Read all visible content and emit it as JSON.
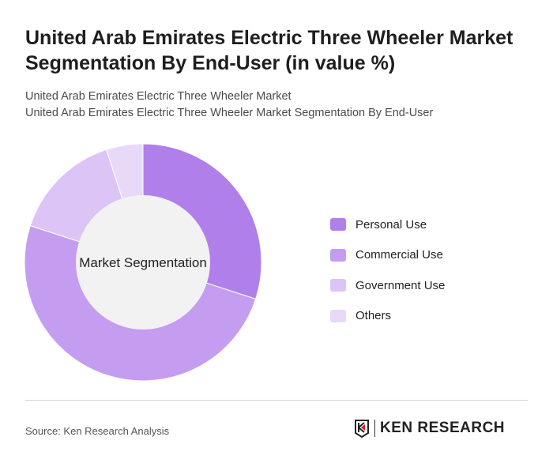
{
  "header": {
    "title": "United Arab Emirates Electric Three Wheeler Market Segmentation By End-User (in value %)",
    "subtitle1": "United Arab Emirates Electric Three Wheeler Market",
    "subtitle2": "United Arab Emirates Electric Three Wheeler Market Segmentation By End-User"
  },
  "chart_data": {
    "type": "pie",
    "variant": "donut",
    "center_label": "Market Segmentation",
    "categories": [
      "Personal Use",
      "Commercial Use",
      "Government Use",
      "Others"
    ],
    "values": [
      30,
      50,
      15,
      5
    ],
    "colors": [
      "#b07fea",
      "#c49df0",
      "#dcc4f6",
      "#e8d9f8"
    ],
    "center_color": "#f2f2f2",
    "legend_placement": "right"
  },
  "footer": {
    "source": "Source: Ken Research Analysis",
    "logo_text": "KEN RESEARCH"
  }
}
